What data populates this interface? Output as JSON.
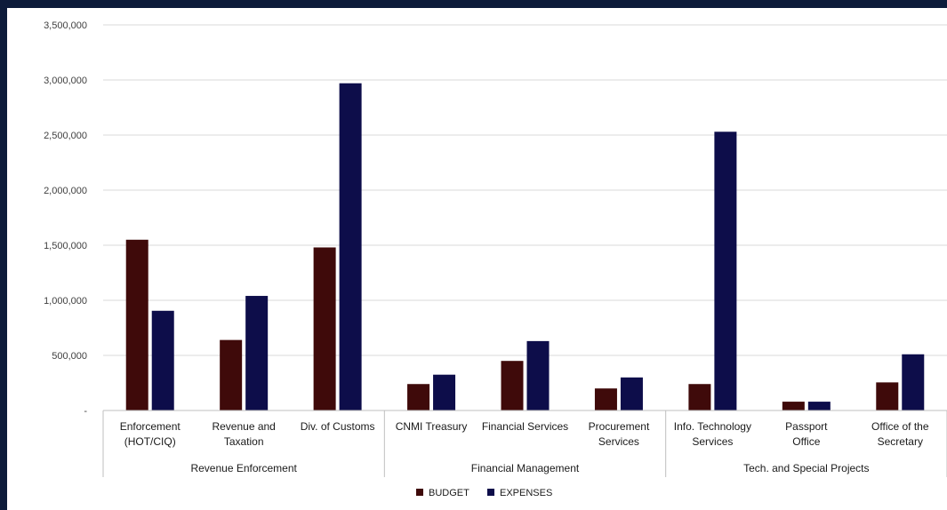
{
  "chart_data": {
    "type": "bar",
    "title": "",
    "xlabel": "",
    "ylabel": "",
    "ylim": [
      0,
      3500000
    ],
    "yticks": [
      {
        "value": 0,
        "label": "-"
      },
      {
        "value": 500000,
        "label": "500,000"
      },
      {
        "value": 1000000,
        "label": "1,000,000"
      },
      {
        "value": 1500000,
        "label": "1,500,000"
      },
      {
        "value": 2000000,
        "label": "2,000,000"
      },
      {
        "value": 2500000,
        "label": "2,500,000"
      },
      {
        "value": 3000000,
        "label": "3,000,000"
      },
      {
        "value": 3500000,
        "label": "3,500,000"
      }
    ],
    "grid": true,
    "legend_position": "bottom",
    "categories": [
      [
        "Enforcement",
        "(HOT/CIQ)"
      ],
      [
        "Revenue and",
        "Taxation"
      ],
      [
        "Div. of Customs"
      ],
      [
        "CNMI Treasury"
      ],
      [
        "Financial Services"
      ],
      [
        "Procurement",
        "Services"
      ],
      [
        "Info. Technology",
        "Services"
      ],
      [
        "Passport",
        "Office"
      ],
      [
        "Office of the",
        "Secretary"
      ]
    ],
    "groups": [
      {
        "label": "Revenue Enforcement",
        "count": 3
      },
      {
        "label": "Financial Management",
        "count": 3
      },
      {
        "label": "Tech. and Special Projects",
        "count": 3
      }
    ],
    "series": [
      {
        "name": "BUDGET",
        "color": "#3f0a0a",
        "values": [
          1550000,
          640000,
          1480000,
          240000,
          450000,
          200000,
          240000,
          80000,
          255000
        ]
      },
      {
        "name": "EXPENSES",
        "color": "#0d0d4a",
        "values": [
          905000,
          1040000,
          2970000,
          325000,
          630000,
          300000,
          2530000,
          80000,
          510000
        ]
      }
    ]
  }
}
